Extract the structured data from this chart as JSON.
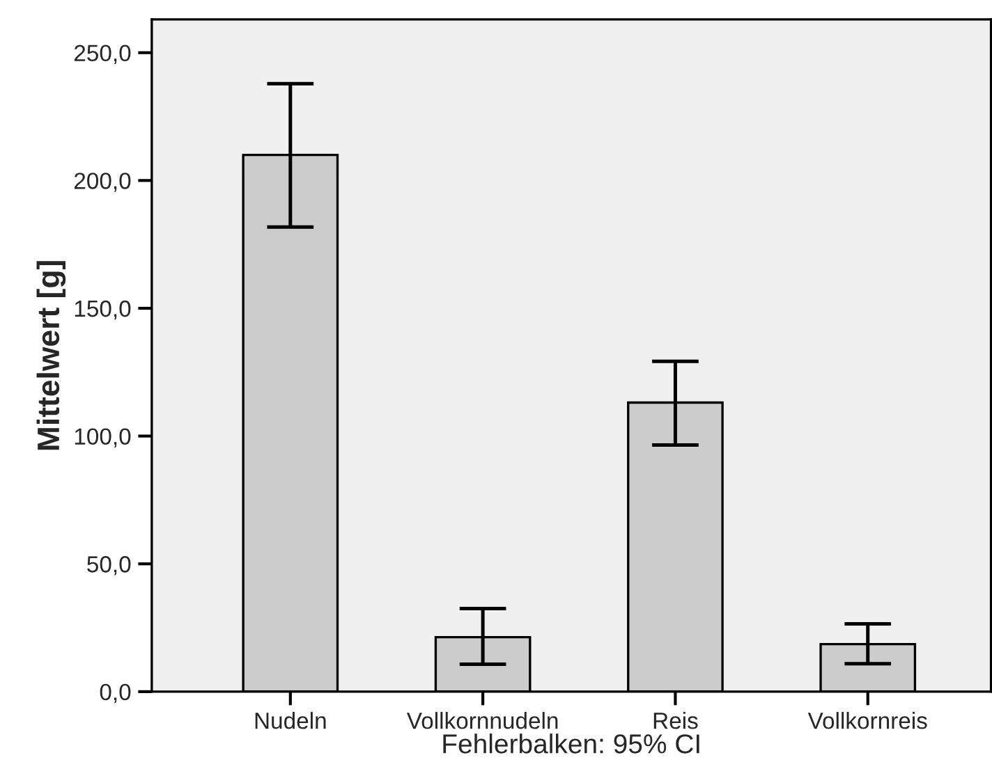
{
  "chart_data": {
    "type": "bar",
    "categories": [
      "Nudeln",
      "Vollkornnudeln",
      "Reis",
      "Vollkornreis"
    ],
    "values": [
      210,
      21.3,
      113.1,
      18.6
    ],
    "errors": [
      [
        181.8,
        237.9
      ],
      [
        10.7,
        32.5
      ],
      [
        96.5,
        129.2
      ],
      [
        10.9,
        26.5
      ]
    ],
    "color": "#cccccc",
    "ylabel": "Mittelwert [g]",
    "xlabel": "Fehlerbalken: 95% CI",
    "ylim": [
      0,
      263
    ],
    "yticks": [
      {
        "value": 0,
        "label": "0,0"
      },
      {
        "value": 50,
        "label": "50,0"
      },
      {
        "value": 100,
        "label": "100,0"
      },
      {
        "value": 150,
        "label": "150,0"
      },
      {
        "value": 200,
        "label": "200,0"
      },
      {
        "value": 250,
        "label": "250,0"
      }
    ],
    "grid": false
  }
}
